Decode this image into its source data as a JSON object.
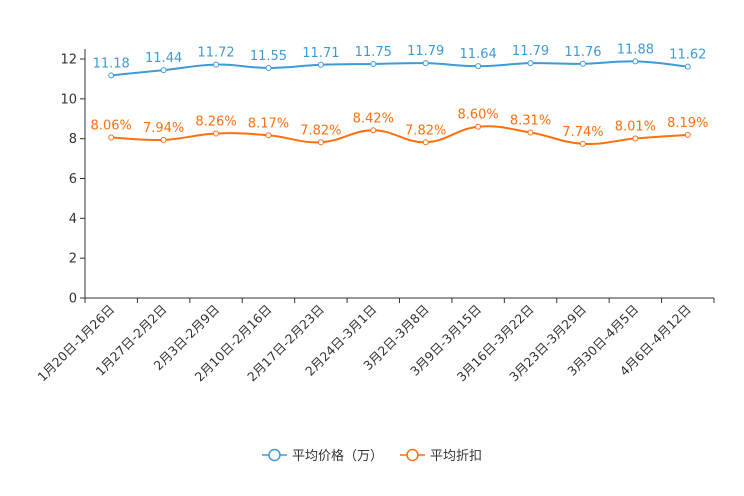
{
  "chart_data": {
    "type": "line",
    "title": "",
    "xlabel": "",
    "ylabel": "",
    "ylim": [
      0,
      12
    ],
    "yticks": [
      0,
      2,
      4,
      6,
      8,
      10,
      12
    ],
    "grid": false,
    "legend_position": "bottom-center",
    "categories": [
      "1月20日-1月26日",
      "1月27日-2月2日",
      "2月3日-2月9日",
      "2月10日-2月16日",
      "2月17日-2月23日",
      "2月24日-3月1日",
      "3月2日-3月8日",
      "3月9日-3月15日",
      "3月16日-3月22日",
      "3月23日-3月29日",
      "3月30日-4月5日",
      "4月6日-4月12日"
    ],
    "series": [
      {
        "name": "平均价格（万）",
        "color": "#3d9bd6",
        "label_suffix": "",
        "values": [
          11.18,
          11.44,
          11.72,
          11.55,
          11.71,
          11.75,
          11.79,
          11.64,
          11.79,
          11.76,
          11.88,
          11.62
        ]
      },
      {
        "name": "平均折扣",
        "color": "#ff6f0f",
        "label_suffix": "%",
        "values": [
          8.06,
          7.94,
          8.26,
          8.17,
          7.82,
          8.42,
          7.82,
          8.6,
          8.31,
          7.74,
          8.01,
          8.19
        ]
      }
    ]
  }
}
